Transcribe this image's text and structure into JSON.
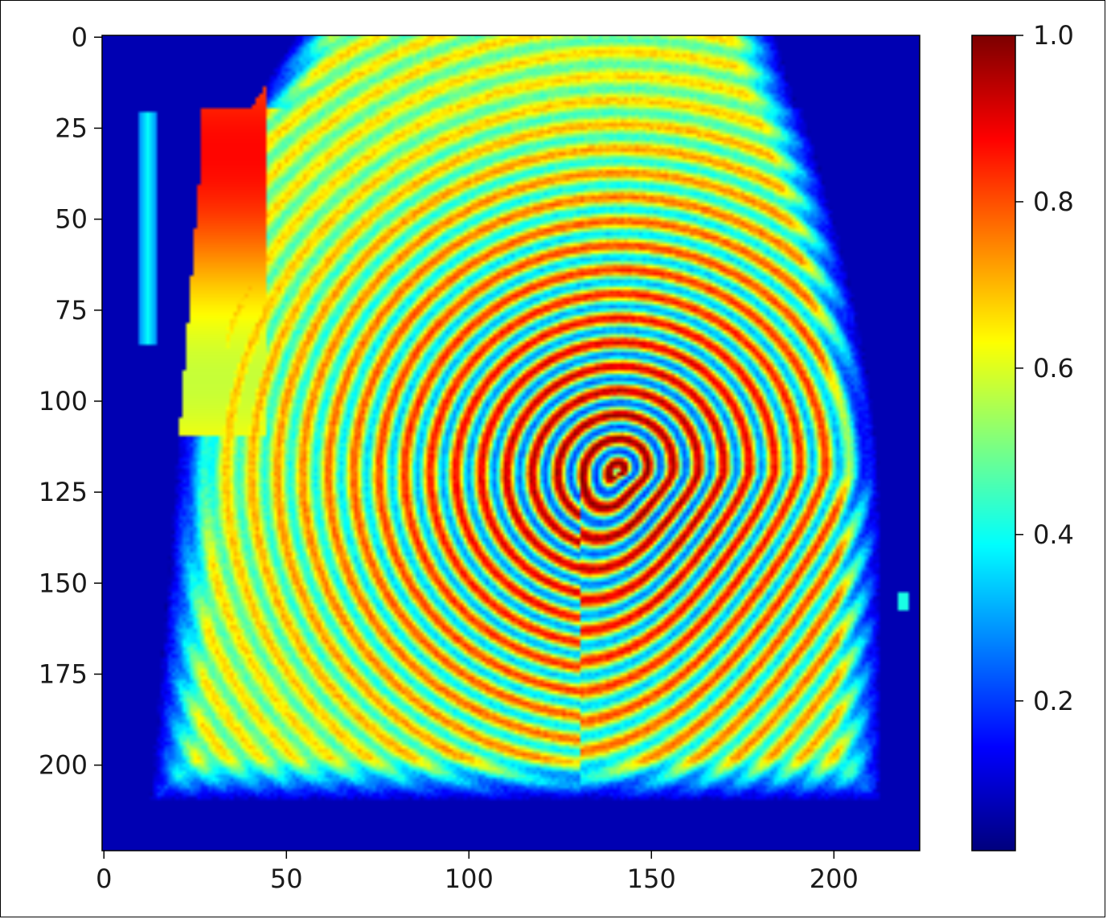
{
  "chart_data": {
    "type": "heatmap",
    "title": "",
    "xlabel": "",
    "ylabel": "",
    "image_shape": [
      224,
      224
    ],
    "xlim": [
      0,
      223
    ],
    "ylim": [
      223,
      0
    ],
    "x_ticks": [
      "0",
      "50",
      "100",
      "150",
      "200"
    ],
    "x_tick_values": [
      0,
      50,
      100,
      150,
      200
    ],
    "y_ticks": [
      "0",
      "25",
      "50",
      "75",
      "100",
      "125",
      "150",
      "175",
      "200"
    ],
    "y_tick_values": [
      0,
      25,
      50,
      75,
      100,
      125,
      150,
      175,
      200
    ],
    "colormap": "jet",
    "colorbar": {
      "range": [
        0.02,
        1.0
      ],
      "ticks": [
        "0.2",
        "0.4",
        "0.6",
        "0.8",
        "1.0"
      ],
      "tick_values": [
        0.2,
        0.4,
        0.6,
        0.8,
        1.0
      ]
    },
    "content": "fingerprint ridge intensity map",
    "features": {
      "core_center": [
        140,
        120
      ],
      "background_value": 0.05,
      "skin_value": 0.55,
      "ridge_peak": 0.97,
      "valley_value": 0.3
    }
  }
}
